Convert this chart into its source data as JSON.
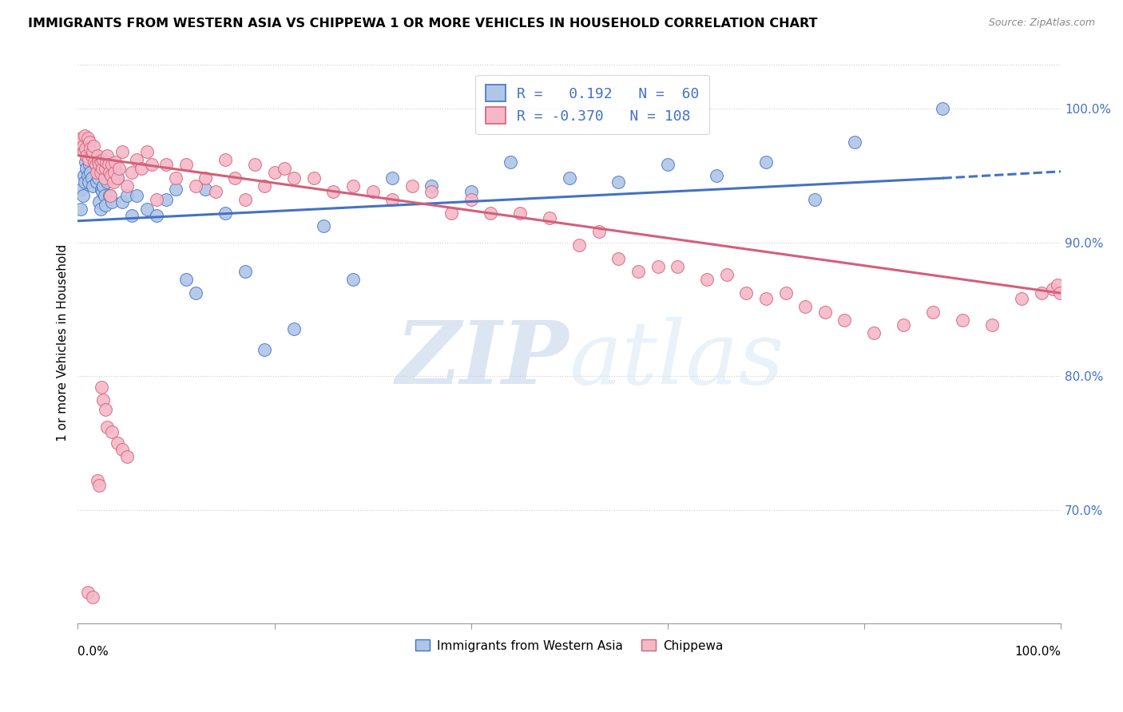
{
  "title": "IMMIGRANTS FROM WESTERN ASIA VS CHIPPEWA 1 OR MORE VEHICLES IN HOUSEHOLD CORRELATION CHART",
  "source": "Source: ZipAtlas.com",
  "ylabel": "1 or more Vehicles in Household",
  "xlim": [
    0.0,
    1.0
  ],
  "ylim": [
    0.615,
    1.035
  ],
  "yticks": [
    0.7,
    0.8,
    0.9,
    1.0
  ],
  "ytick_labels": [
    "70.0%",
    "80.0%",
    "90.0%",
    "100.0%"
  ],
  "legend_r_blue": "0.192",
  "legend_n_blue": "60",
  "legend_r_pink": "-0.370",
  "legend_n_pink": "108",
  "blue_color": "#aec6e8",
  "pink_color": "#f5b8c8",
  "line_blue": "#4472c4",
  "line_pink": "#d45f7a",
  "watermark_zip": "ZIP",
  "watermark_atlas": "atlas",
  "blue_line_x0": 0.0,
  "blue_line_y0": 0.916,
  "blue_line_x1": 0.88,
  "blue_line_y1": 0.948,
  "blue_line_dash_x0": 0.88,
  "blue_line_dash_y0": 0.948,
  "blue_line_dash_x1": 1.0,
  "blue_line_dash_y1": 0.953,
  "pink_line_x0": 0.0,
  "pink_line_y0": 0.965,
  "pink_line_x1": 1.0,
  "pink_line_y1": 0.862,
  "blue_scatter_x": [
    0.003,
    0.004,
    0.005,
    0.006,
    0.007,
    0.008,
    0.009,
    0.01,
    0.011,
    0.012,
    0.013,
    0.014,
    0.015,
    0.016,
    0.017,
    0.018,
    0.019,
    0.02,
    0.021,
    0.022,
    0.023,
    0.024,
    0.025,
    0.026,
    0.027,
    0.028,
    0.03,
    0.032,
    0.035,
    0.038,
    0.04,
    0.045,
    0.05,
    0.055,
    0.06,
    0.07,
    0.08,
    0.09,
    0.1,
    0.11,
    0.12,
    0.13,
    0.15,
    0.17,
    0.19,
    0.22,
    0.25,
    0.28,
    0.32,
    0.36,
    0.4,
    0.44,
    0.5,
    0.55,
    0.6,
    0.65,
    0.7,
    0.75,
    0.79,
    0.88
  ],
  "blue_scatter_y": [
    0.925,
    0.94,
    0.935,
    0.95,
    0.945,
    0.96,
    0.955,
    0.95,
    0.945,
    0.958,
    0.952,
    0.948,
    0.942,
    0.965,
    0.96,
    0.958,
    0.945,
    0.955,
    0.948,
    0.93,
    0.925,
    0.94,
    0.938,
    0.942,
    0.935,
    0.928,
    0.945,
    0.935,
    0.93,
    0.955,
    0.948,
    0.93,
    0.935,
    0.92,
    0.935,
    0.925,
    0.92,
    0.932,
    0.94,
    0.872,
    0.862,
    0.94,
    0.922,
    0.878,
    0.82,
    0.835,
    0.912,
    0.872,
    0.948,
    0.942,
    0.938,
    0.96,
    0.948,
    0.945,
    0.958,
    0.95,
    0.96,
    0.932,
    0.975,
    1.0
  ],
  "pink_scatter_x": [
    0.003,
    0.004,
    0.005,
    0.006,
    0.007,
    0.008,
    0.009,
    0.01,
    0.011,
    0.012,
    0.013,
    0.014,
    0.015,
    0.016,
    0.017,
    0.018,
    0.019,
    0.02,
    0.021,
    0.022,
    0.023,
    0.024,
    0.025,
    0.026,
    0.027,
    0.028,
    0.029,
    0.03,
    0.031,
    0.032,
    0.033,
    0.034,
    0.035,
    0.036,
    0.037,
    0.038,
    0.04,
    0.042,
    0.045,
    0.05,
    0.055,
    0.06,
    0.065,
    0.07,
    0.075,
    0.08,
    0.09,
    0.1,
    0.11,
    0.12,
    0.13,
    0.14,
    0.15,
    0.16,
    0.17,
    0.18,
    0.19,
    0.2,
    0.21,
    0.22,
    0.24,
    0.26,
    0.28,
    0.3,
    0.32,
    0.34,
    0.36,
    0.38,
    0.4,
    0.42,
    0.45,
    0.48,
    0.51,
    0.53,
    0.55,
    0.57,
    0.59,
    0.61,
    0.64,
    0.66,
    0.68,
    0.7,
    0.72,
    0.74,
    0.76,
    0.78,
    0.81,
    0.84,
    0.87,
    0.9,
    0.93,
    0.96,
    0.98,
    0.992,
    0.997,
    0.999,
    0.01,
    0.015,
    0.02,
    0.022,
    0.024,
    0.026,
    0.028,
    0.03,
    0.035,
    0.04,
    0.045,
    0.05
  ],
  "pink_scatter_y": [
    0.975,
    0.978,
    0.972,
    0.968,
    0.98,
    0.97,
    0.965,
    0.978,
    0.962,
    0.975,
    0.97,
    0.965,
    0.968,
    0.972,
    0.96,
    0.958,
    0.952,
    0.965,
    0.96,
    0.958,
    0.952,
    0.96,
    0.955,
    0.962,
    0.948,
    0.955,
    0.96,
    0.965,
    0.958,
    0.952,
    0.935,
    0.95,
    0.958,
    0.945,
    0.952,
    0.96,
    0.948,
    0.955,
    0.968,
    0.942,
    0.952,
    0.962,
    0.955,
    0.968,
    0.958,
    0.932,
    0.958,
    0.948,
    0.958,
    0.942,
    0.948,
    0.938,
    0.962,
    0.948,
    0.932,
    0.958,
    0.942,
    0.952,
    0.955,
    0.948,
    0.948,
    0.938,
    0.942,
    0.938,
    0.932,
    0.942,
    0.938,
    0.922,
    0.932,
    0.922,
    0.922,
    0.918,
    0.898,
    0.908,
    0.888,
    0.878,
    0.882,
    0.882,
    0.872,
    0.876,
    0.862,
    0.858,
    0.862,
    0.852,
    0.848,
    0.842,
    0.832,
    0.838,
    0.848,
    0.842,
    0.838,
    0.858,
    0.862,
    0.865,
    0.868,
    0.862,
    0.638,
    0.635,
    0.722,
    0.718,
    0.792,
    0.782,
    0.775,
    0.762,
    0.758,
    0.75,
    0.745,
    0.74
  ]
}
